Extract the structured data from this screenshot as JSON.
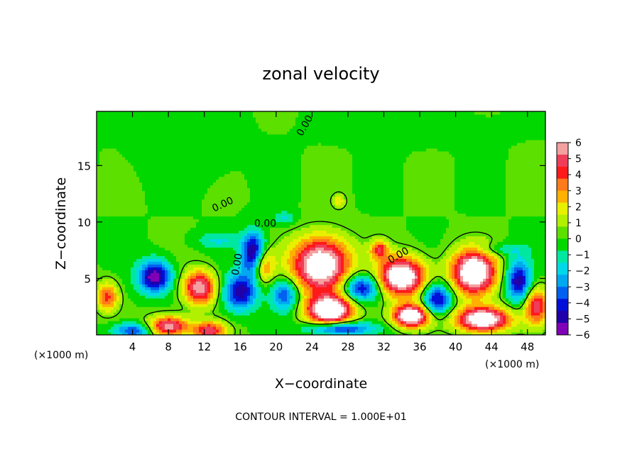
{
  "chart_data": {
    "type": "heatmap",
    "title": "zonal velocity",
    "xlabel": "X−coordinate",
    "ylabel": "Z−coordinate",
    "x_unit_left": "(×1000 m)",
    "x_unit_right": "(×1000 m)",
    "footer": "CONTOUR INTERVAL = 1.000E+01",
    "xlim": [
      0,
      50
    ],
    "ylim": [
      0,
      19.8
    ],
    "x_ticks": [
      "4",
      "8",
      "12",
      "16",
      "20",
      "24",
      "28",
      "32",
      "36",
      "40",
      "44",
      "48"
    ],
    "x_tick_values": [
      4,
      8,
      12,
      16,
      20,
      24,
      28,
      32,
      36,
      40,
      44,
      48
    ],
    "y_ticks": [
      "5",
      "10",
      "15"
    ],
    "y_tick_values": [
      5,
      10,
      15
    ],
    "contour_labels": [
      "0.00",
      "0.00",
      "0.00",
      "0.00",
      "0.00"
    ],
    "colorbar": {
      "min": -6,
      "max": 6,
      "ticks": [
        "6",
        "5",
        "4",
        "3",
        "2",
        "1",
        "0",
        "−1",
        "−2",
        "−3",
        "−4",
        "−5",
        "−6"
      ],
      "colors": [
        "#f4a0a0",
        "#ef3e5a",
        "#ff1a1a",
        "#ff7a1a",
        "#ffb000",
        "#e8f000",
        "#b0f000",
        "#5ce000",
        "#00d800",
        "#00e8a0",
        "#00d8e8",
        "#00a8f0",
        "#0060f0",
        "#0010d8",
        "#2000a8",
        "#8000b8"
      ]
    },
    "blobs": [
      {
        "x": 25,
        "z": 6.2,
        "rx": 3.2,
        "rz": 2.4,
        "v": 8
      },
      {
        "x": 34,
        "z": 5.2,
        "rx": 2.6,
        "rz": 1.7,
        "v": 8
      },
      {
        "x": 42,
        "z": 5.6,
        "rx": 2.5,
        "rz": 2.0,
        "v": 8
      },
      {
        "x": 26,
        "z": 2.2,
        "rx": 2.6,
        "rz": 1.3,
        "v": 8
      },
      {
        "x": 35,
        "z": 1.7,
        "rx": 2.0,
        "rz": 1.0,
        "v": 8
      },
      {
        "x": 43,
        "z": 1.4,
        "rx": 3.0,
        "rz": 1.1,
        "v": 8
      },
      {
        "x": 11.5,
        "z": 4.2,
        "rx": 1.8,
        "rz": 1.5,
        "v": 6
      },
      {
        "x": 8,
        "z": 0.8,
        "rx": 2.2,
        "rz": 0.9,
        "v": 6
      },
      {
        "x": 12.5,
        "z": 0.4,
        "rx": 1.8,
        "rz": 0.8,
        "v": 5
      },
      {
        "x": 1.2,
        "z": 3.4,
        "rx": 1.2,
        "rz": 1.3,
        "v": 4
      },
      {
        "x": 49,
        "z": 2.6,
        "rx": 1.3,
        "rz": 1.6,
        "v": 5
      },
      {
        "x": 18.5,
        "z": 6.2,
        "rx": 1.2,
        "rz": 1.5,
        "v": 4
      },
      {
        "x": 31.5,
        "z": 7.6,
        "rx": 1.0,
        "rz": 0.8,
        "v": 4
      },
      {
        "x": 27,
        "z": 11.9,
        "rx": 0.7,
        "rz": 0.6,
        "v": 3
      },
      {
        "x": 6.5,
        "z": 5.2,
        "rx": 1.8,
        "rz": 1.4,
        "v": -6
      },
      {
        "x": 17.5,
        "z": 7.2,
        "rx": 1.3,
        "rz": 1.9,
        "v": -6
      },
      {
        "x": 16,
        "z": 3.8,
        "rx": 1.8,
        "rz": 1.6,
        "v": -5
      },
      {
        "x": 21,
        "z": 3.6,
        "rx": 1.5,
        "rz": 1.4,
        "v": -4
      },
      {
        "x": 29.5,
        "z": 4.2,
        "rx": 2.0,
        "rz": 1.2,
        "v": -5
      },
      {
        "x": 38,
        "z": 3.2,
        "rx": 1.6,
        "rz": 1.4,
        "v": -5
      },
      {
        "x": 47,
        "z": 4.8,
        "rx": 1.4,
        "rz": 1.8,
        "v": -5
      },
      {
        "x": 4,
        "z": 0.4,
        "rx": 2.2,
        "rz": 0.7,
        "v": -4
      },
      {
        "x": 27,
        "z": 0.6,
        "rx": 3.5,
        "rz": 0.6,
        "v": -5
      },
      {
        "x": 21,
        "z": 10.4,
        "rx": 1.2,
        "rz": 0.6,
        "v": -2
      },
      {
        "x": 13.5,
        "z": 8.4,
        "rx": 2.5,
        "rz": 0.7,
        "v": -1.5
      },
      {
        "x": 45,
        "z": 7.6,
        "rx": 3.0,
        "rz": 0.6,
        "v": -1.5
      },
      {
        "x": 10,
        "z": 16.5,
        "rx": 5,
        "rz": 2.5,
        "v": -1.2
      },
      {
        "x": 35,
        "z": 18.5,
        "rx": 8,
        "rz": 1.5,
        "v": -0.8
      }
    ]
  }
}
